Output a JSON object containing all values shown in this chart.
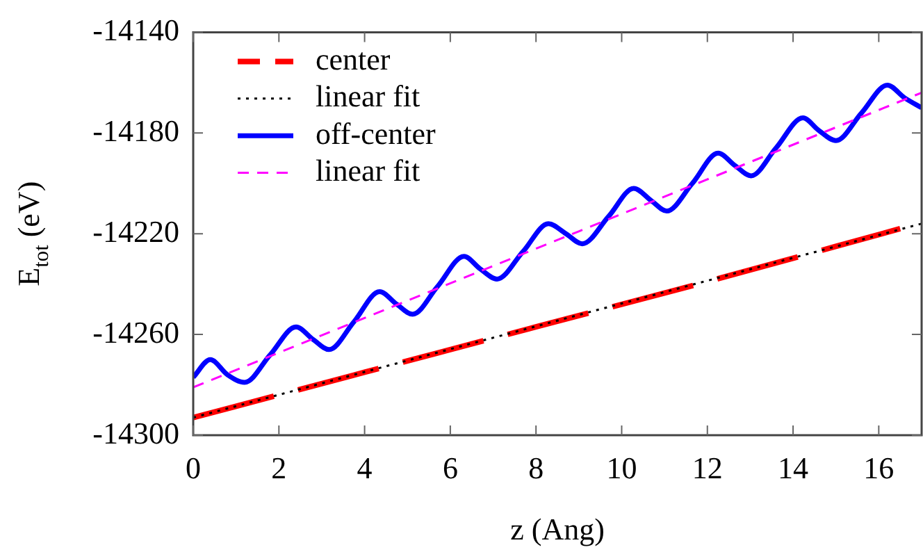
{
  "chart_data": {
    "type": "line",
    "xlabel": "z (Ang)",
    "ylabel": "E$_{tot}$ (eV)",
    "xlim": [
      0,
      17
    ],
    "xticks": [
      0,
      2,
      4,
      6,
      8,
      10,
      12,
      14,
      16
    ],
    "ylim": [
      -14300,
      -14140
    ],
    "yticks": [
      -14300,
      -14260,
      -14220,
      -14180,
      -14140
    ],
    "grid": false,
    "legend": "top left",
    "marker": "none",
    "series": [
      {
        "name": "center",
        "color": "#ff0000",
        "line_style": "dashed",
        "x": [
          0,
          4,
          8,
          12,
          16.5
        ],
        "values": [
          -14293,
          -14275,
          -14257,
          -14239,
          -14218
        ]
      },
      {
        "name": "linear fit",
        "color": "#000000",
        "line_style": "dotted",
        "x": [
          0,
          17
        ],
        "values": [
          -14293,
          -14216
        ]
      },
      {
        "name": "off-center",
        "color": "#0000ff",
        "line_style": "solid",
        "x": [
          0,
          0.4,
          0.8,
          1.2,
          1.8,
          2.4,
          2.8,
          3.17,
          3.75,
          4.35,
          4.75,
          5.12,
          5.7,
          6.32,
          6.7,
          7.09,
          7.7,
          8.29,
          8.7,
          9.08,
          9.7,
          10.28,
          10.7,
          11.05,
          11.65,
          12.25,
          12.65,
          13.02,
          13.6,
          14.23,
          14.6,
          15.0,
          15.6,
          16.2,
          16.6,
          17
        ],
        "values": [
          -14277,
          -14270,
          -14276,
          -14279,
          -14268,
          -14257,
          -14262,
          -14266,
          -14255,
          -14243,
          -14248,
          -14252,
          -14241,
          -14229,
          -14234,
          -14238,
          -14227,
          -14216,
          -14220,
          -14224,
          -14213,
          -14202,
          -14207,
          -14211,
          -14200,
          -14188,
          -14193,
          -14197,
          -14186,
          -14174,
          -14179,
          -14183,
          -14172,
          -14161,
          -14166,
          -14170
        ]
      },
      {
        "name": "linear fit",
        "color": "#ff00ff",
        "line_style": "dashed",
        "x": [
          0,
          17
        ],
        "values": [
          -14281,
          -14164
        ]
      }
    ]
  }
}
